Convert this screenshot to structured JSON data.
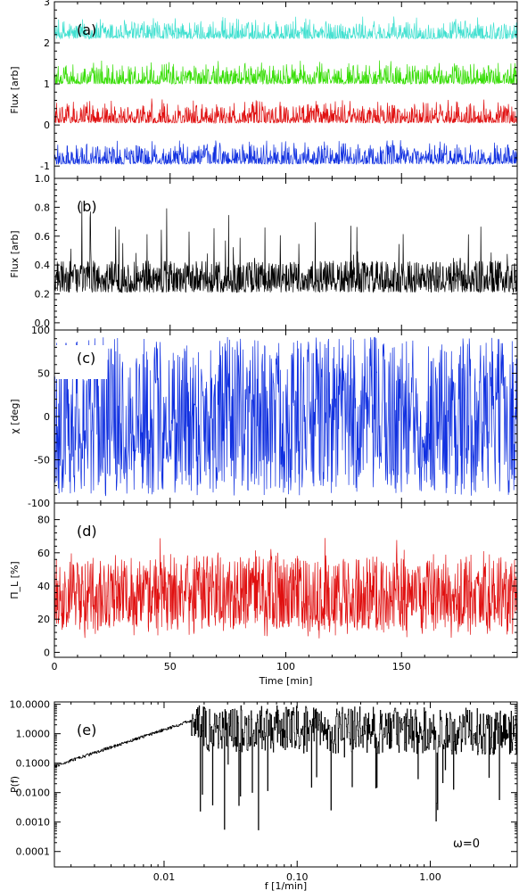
{
  "chart_data": [
    {
      "id": "a",
      "type": "line",
      "panel_label": "(a)",
      "xlabel": "",
      "ylabel": "Flux [arb]",
      "xlim": [
        0,
        200
      ],
      "ylim": [
        -1.3,
        3.0
      ],
      "yticks": [
        -1,
        0,
        1,
        2,
        3
      ],
      "series": [
        {
          "color": "#40E0D0",
          "baseline": 2.2,
          "amp": 0.55,
          "start": 2
        },
        {
          "color": "#33DD00",
          "baseline": 1.1,
          "amp": 0.6,
          "start": 0
        },
        {
          "color": "#E01010",
          "baseline": 0.15,
          "amp": 0.6,
          "start": 0
        },
        {
          "color": "#1030E0",
          "baseline": -0.85,
          "amp": 0.6,
          "start": 0
        }
      ]
    },
    {
      "id": "b",
      "type": "line",
      "panel_label": "(b)",
      "xlabel": "",
      "ylabel": "Flux [arb]",
      "xlim": [
        0,
        200
      ],
      "ylim": [
        -0.05,
        1.0
      ],
      "yticks": [
        0.0,
        0.2,
        0.4,
        0.6,
        0.8,
        1.0
      ],
      "yticklabels": [
        "0.0",
        "0.2",
        "0.4",
        "0.6",
        "0.8",
        "1.0"
      ],
      "series": [
        {
          "color": "#000000",
          "baseline": 0.13,
          "amp": 0.85
        }
      ]
    },
    {
      "id": "c",
      "type": "line",
      "panel_label": "(c)",
      "xlabel": "",
      "ylabel": "χ [deg]",
      "xlim": [
        0,
        200
      ],
      "ylim": [
        -100,
        100
      ],
      "yticks": [
        -100,
        -50,
        0,
        50,
        100
      ],
      "series": [
        {
          "color": "#1030E0",
          "range": [
            -92,
            92
          ]
        }
      ]
    },
    {
      "id": "d",
      "type": "line",
      "panel_label": "(d)",
      "xlabel": "Time [min]",
      "ylabel": "Π_L [%]",
      "xlim": [
        0,
        200
      ],
      "ylim": [
        -3,
        90
      ],
      "yticks": [
        0,
        20,
        40,
        60,
        80
      ],
      "xticks": [
        0,
        50,
        100,
        150
      ],
      "series": [
        {
          "color": "#E01010",
          "baseline": 4,
          "amp": 84
        }
      ]
    },
    {
      "id": "e",
      "type": "line",
      "panel_label": "(e)",
      "xlabel": "f [1/min]",
      "ylabel": "P(f)",
      "xscale": "log",
      "yscale": "log",
      "xlim": [
        0.0015,
        4.5
      ],
      "ylim": [
        3e-05,
        12
      ],
      "xticks": [
        0.01,
        0.1,
        1.0
      ],
      "xticklabels": [
        "0.01",
        "0.10",
        "1.00"
      ],
      "yticks": [
        0.0001,
        0.001,
        0.01,
        0.1,
        1,
        10
      ],
      "yticklabels": [
        "0.0001",
        "0.0010",
        "0.0100",
        "0.1000",
        "1.0000",
        "10.0000"
      ],
      "annotation": "ω=0",
      "series": [
        {
          "color": "#000000"
        }
      ]
    }
  ]
}
